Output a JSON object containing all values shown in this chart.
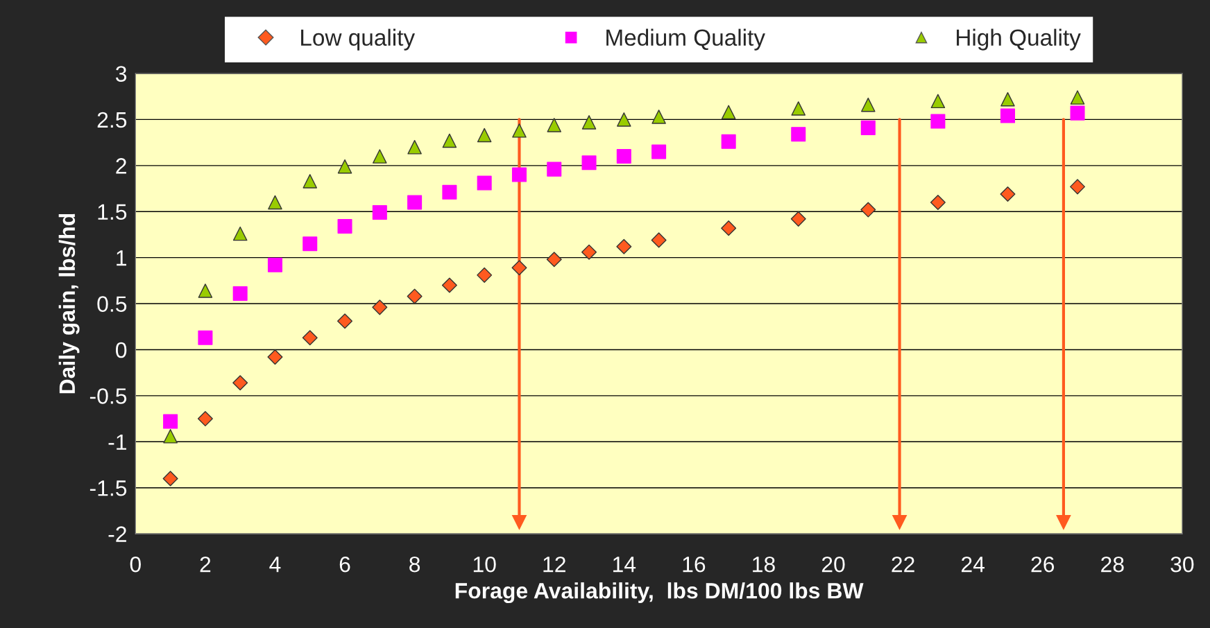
{
  "chart_data": {
    "type": "scatter",
    "xlabel": "Forage Availability,  lbs DM/100 lbs BW",
    "ylabel": "Daily gain, lbs/hd",
    "x": [
      1,
      2,
      3,
      4,
      5,
      6,
      7,
      8,
      9,
      10,
      11,
      12,
      13,
      14,
      15,
      17,
      19,
      21,
      23,
      25,
      27
    ],
    "series": [
      {
        "name": "Low quality",
        "color": "#ff5a1f",
        "marker": "diamond",
        "values": [
          -1.4,
          -0.75,
          -0.36,
          -0.08,
          0.13,
          0.31,
          0.46,
          0.58,
          0.7,
          0.81,
          0.89,
          0.98,
          1.06,
          1.12,
          1.19,
          1.32,
          1.42,
          1.52,
          1.6,
          1.69,
          1.77
        ]
      },
      {
        "name": "Medium Quality",
        "color": "#ff00ff",
        "marker": "square",
        "values": [
          -0.78,
          0.13,
          0.61,
          0.92,
          1.15,
          1.34,
          1.49,
          1.6,
          1.71,
          1.81,
          1.9,
          1.96,
          2.03,
          2.1,
          2.15,
          2.26,
          2.34,
          2.41,
          2.48,
          2.54,
          2.57
        ]
      },
      {
        "name": "High Quality",
        "color": "#99cc00",
        "marker": "triangle",
        "values": [
          -0.94,
          0.64,
          1.26,
          1.6,
          1.83,
          1.99,
          2.1,
          2.2,
          2.27,
          2.33,
          2.38,
          2.44,
          2.47,
          2.5,
          2.53,
          2.58,
          2.62,
          2.66,
          2.7,
          2.72,
          2.74
        ]
      }
    ],
    "xlim": [
      0,
      30
    ],
    "xticks": [
      0,
      2,
      4,
      6,
      8,
      10,
      12,
      14,
      16,
      18,
      20,
      22,
      24,
      26,
      28,
      30
    ],
    "ylim": [
      -2,
      3
    ],
    "yticks": [
      -2,
      -1.5,
      -1,
      -0.5,
      0,
      0.5,
      1,
      1.5,
      2,
      2.5,
      3
    ],
    "grid": "y",
    "legend": "top",
    "ref_lines": [
      {
        "axis": "x",
        "value": 11,
        "color": "#ff5a1f"
      },
      {
        "axis": "x",
        "value": 21.9,
        "color": "#ff5a1f"
      },
      {
        "axis": "x",
        "value": 26.6,
        "color": "#ff5a1f"
      }
    ]
  }
}
